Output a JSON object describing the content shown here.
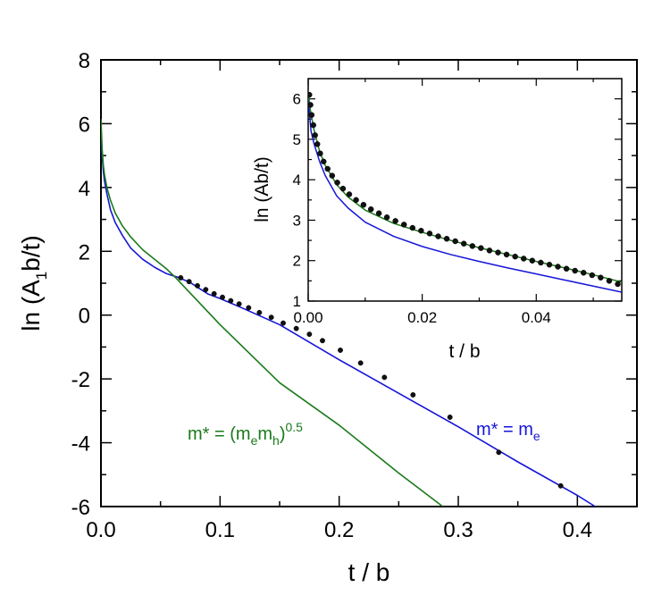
{
  "chart_data": [
    {
      "type": "line",
      "role": "main",
      "xlabel": "t / b",
      "ylabel_parts": [
        "ln (A",
        "1",
        "b/t)"
      ],
      "xlim": [
        0.0,
        0.45
      ],
      "ylim": [
        -6,
        8
      ],
      "xticks": [
        0.0,
        0.1,
        0.2,
        0.3,
        0.4
      ],
      "xtick_labels": [
        "0.0",
        "0.1",
        "0.2",
        "0.3",
        "0.4"
      ],
      "yticks": [
        -6,
        -4,
        -2,
        0,
        2,
        4,
        6,
        8
      ],
      "ytick_labels": [
        "-6",
        "-4",
        "-2",
        "0",
        "2",
        "4",
        "6",
        "8"
      ],
      "series": [
        {
          "name": "data",
          "kind": "scatter",
          "color": "#111111",
          "x": [
            0.067,
            0.074,
            0.081,
            0.088,
            0.095,
            0.102,
            0.109,
            0.116,
            0.124,
            0.133,
            0.143,
            0.153,
            0.164,
            0.175,
            0.186,
            0.201,
            0.218,
            0.238,
            0.262,
            0.293,
            0.334,
            0.386
          ],
          "y": [
            1.17,
            1.05,
            0.92,
            0.8,
            0.67,
            0.56,
            0.45,
            0.35,
            0.23,
            0.08,
            -0.07,
            -0.25,
            -0.42,
            -0.6,
            -0.8,
            -1.1,
            -1.5,
            -1.95,
            -2.5,
            -3.2,
            -4.3,
            -5.35
          ]
        },
        {
          "name": "m* = m_e",
          "kind": "line",
          "color": "#1515d8",
          "x": [
            0.0,
            0.001,
            0.002,
            0.003,
            0.005,
            0.008,
            0.012,
            0.018,
            0.025,
            0.035,
            0.045,
            0.055,
            0.065,
            0.075,
            0.09,
            0.1,
            0.12,
            0.15,
            0.2,
            0.25,
            0.3,
            0.35,
            0.4,
            0.415
          ],
          "y": [
            5.9,
            5.0,
            4.5,
            4.2,
            3.8,
            3.3,
            2.9,
            2.5,
            2.1,
            1.75,
            1.5,
            1.3,
            1.18,
            1.02,
            0.66,
            0.52,
            0.2,
            -0.3,
            -1.4,
            -2.45,
            -3.5,
            -4.6,
            -5.65,
            -6.0
          ]
        },
        {
          "name": "m* = (m_e m_h)^0.5",
          "kind": "line",
          "color": "#1a7a1a",
          "x": [
            0.0,
            0.001,
            0.002,
            0.003,
            0.005,
            0.008,
            0.012,
            0.018,
            0.025,
            0.035,
            0.045,
            0.055,
            0.062,
            0.1,
            0.15,
            0.2,
            0.25,
            0.287
          ],
          "y": [
            6.15,
            5.2,
            4.7,
            4.4,
            4.0,
            3.6,
            3.2,
            2.8,
            2.45,
            2.05,
            1.75,
            1.45,
            1.2,
            -0.3,
            -2.12,
            -3.45,
            -4.95,
            -6.0
          ]
        }
      ],
      "annotations": [
        {
          "parts": [
            "m* = (m",
            "e",
            "m",
            "h",
            ")",
            "0.5"
          ],
          "color": "#1a7a1a"
        },
        {
          "parts": [
            "m* = m",
            "e"
          ],
          "color": "#1515d8"
        }
      ]
    },
    {
      "type": "line",
      "role": "inset",
      "xlabel": "t / b",
      "ylabel": "ln (Ab/t)",
      "xlim": [
        0.0,
        0.055
      ],
      "ylim": [
        1,
        6.5
      ],
      "xticks": [
        0.0,
        0.02,
        0.04
      ],
      "xtick_labels": [
        "0.00",
        "0.02",
        "0.04"
      ],
      "yticks": [
        1,
        2,
        3,
        4,
        5,
        6
      ],
      "ytick_labels": [
        "1",
        "2",
        "3",
        "4",
        "5",
        "6"
      ],
      "series": [
        {
          "name": "data",
          "kind": "scatter",
          "color": "#111111",
          "x": [
            0.0002,
            0.0004,
            0.0006,
            0.0009,
            0.0012,
            0.0016,
            0.0021,
            0.0027,
            0.0034,
            0.0042,
            0.0051,
            0.0061,
            0.0072,
            0.0084,
            0.0097,
            0.011,
            0.0124,
            0.0138,
            0.0153,
            0.0168,
            0.0183,
            0.0198,
            0.0213,
            0.0228,
            0.0243,
            0.0258,
            0.0273,
            0.0288,
            0.0303,
            0.0318,
            0.0333,
            0.0348,
            0.0363,
            0.0378,
            0.0393,
            0.0408,
            0.0423,
            0.0438,
            0.0453,
            0.0468,
            0.0483,
            0.0498,
            0.0513,
            0.0528,
            0.0543
          ],
          "y": [
            6.1,
            5.85,
            5.6,
            5.35,
            5.1,
            4.88,
            4.65,
            4.45,
            4.27,
            4.1,
            3.93,
            3.78,
            3.64,
            3.5,
            3.38,
            3.27,
            3.17,
            3.07,
            2.98,
            2.89,
            2.81,
            2.74,
            2.67,
            2.6,
            2.54,
            2.48,
            2.42,
            2.36,
            2.31,
            2.25,
            2.2,
            2.15,
            2.1,
            2.05,
            2.0,
            1.95,
            1.9,
            1.85,
            1.8,
            1.75,
            1.7,
            1.64,
            1.58,
            1.5,
            1.42
          ]
        },
        {
          "name": "m* = m_e",
          "kind": "line",
          "color": "#1515d8",
          "x": [
            0.0,
            0.0005,
            0.001,
            0.002,
            0.003,
            0.005,
            0.007,
            0.01,
            0.015,
            0.02,
            0.025,
            0.03,
            0.035,
            0.04,
            0.045,
            0.05,
            0.055
          ],
          "y": [
            6.0,
            5.2,
            4.9,
            4.45,
            4.1,
            3.6,
            3.3,
            2.95,
            2.6,
            2.35,
            2.15,
            1.98,
            1.82,
            1.67,
            1.52,
            1.37,
            1.22
          ]
        },
        {
          "name": "m* = (m_e m_h)^0.5",
          "kind": "line",
          "color": "#1a7a1a",
          "x": [
            0.0,
            0.0003,
            0.0006,
            0.001,
            0.002,
            0.003,
            0.005,
            0.007,
            0.01,
            0.015,
            0.02,
            0.025,
            0.03,
            0.035,
            0.04,
            0.045,
            0.05,
            0.055
          ],
          "y": [
            6.2,
            5.8,
            5.55,
            5.25,
            4.7,
            4.35,
            3.88,
            3.57,
            3.25,
            2.92,
            2.7,
            2.5,
            2.32,
            2.15,
            1.98,
            1.82,
            1.65,
            1.47
          ]
        }
      ]
    }
  ]
}
